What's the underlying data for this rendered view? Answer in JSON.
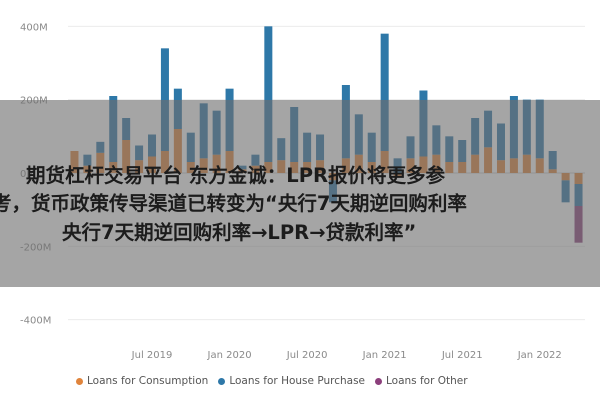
{
  "chart_data": {
    "type": "bar",
    "stacked": true,
    "title": "",
    "xlabel": "",
    "ylabel": "",
    "ylim": [
      -450,
      450
    ],
    "y_ticks": [
      {
        "value": 400,
        "label": "400M"
      },
      {
        "value": 200,
        "label": "200M"
      },
      {
        "value": 0,
        "label": "0M"
      },
      {
        "value": -200,
        "label": "-200M"
      },
      {
        "value": -400,
        "label": "-400M"
      }
    ],
    "x_ticks": [
      {
        "index": 6,
        "label": "Jul 2019"
      },
      {
        "index": 12,
        "label": "Jan 2020"
      },
      {
        "index": 18,
        "label": "Jul 2020"
      },
      {
        "index": 24,
        "label": "Jan 2021"
      },
      {
        "index": 30,
        "label": "Jul 2021"
      },
      {
        "index": 36,
        "label": "Jan 2022"
      }
    ],
    "categories": [
      "2019-01",
      "2019-02",
      "2019-03",
      "2019-04",
      "2019-05",
      "2019-06",
      "2019-07",
      "2019-08",
      "2019-09",
      "2019-10",
      "2019-11",
      "2019-12",
      "2020-01",
      "2020-02",
      "2020-03",
      "2020-04",
      "2020-05",
      "2020-06",
      "2020-07",
      "2020-08",
      "2020-09",
      "2020-10",
      "2020-11",
      "2020-12",
      "2021-01",
      "2021-02",
      "2021-03",
      "2021-04",
      "2021-05",
      "2021-06",
      "2021-07",
      "2021-08",
      "2021-09",
      "2021-10",
      "2021-11",
      "2021-12",
      "2022-01",
      "2022-02",
      "2022-03",
      "2022-04"
    ],
    "series": [
      {
        "name": "Loans for Consumption",
        "color": "#e0843c",
        "values": [
          60,
          20,
          55,
          30,
          90,
          35,
          45,
          60,
          120,
          30,
          40,
          50,
          60,
          10,
          20,
          30,
          35,
          30,
          30,
          35,
          -20,
          40,
          50,
          30,
          60,
          -10,
          40,
          45,
          50,
          30,
          30,
          50,
          70,
          35,
          40,
          50,
          40,
          10,
          -20,
          -30
        ]
      },
      {
        "name": "Loans for House Purchase",
        "color": "#2e78a8",
        "values": [
          0,
          30,
          30,
          180,
          60,
          40,
          60,
          280,
          110,
          80,
          150,
          120,
          170,
          10,
          30,
          370,
          60,
          150,
          80,
          70,
          -60,
          200,
          110,
          80,
          320,
          40,
          60,
          180,
          80,
          70,
          60,
          100,
          100,
          100,
          170,
          150,
          160,
          50,
          -60,
          -60
        ]
      },
      {
        "name": "Loans for Other",
        "color": "#8c3f7c",
        "values": [
          0,
          0,
          0,
          0,
          0,
          0,
          0,
          0,
          0,
          0,
          0,
          0,
          0,
          0,
          0,
          0,
          0,
          0,
          0,
          0,
          0,
          0,
          0,
          0,
          0,
          0,
          0,
          0,
          0,
          0,
          0,
          0,
          0,
          0,
          0,
          0,
          0,
          0,
          0,
          -100
        ]
      }
    ],
    "legend_position": "bottom-left",
    "grid": true
  },
  "overlay": {
    "lines": [
      "期货杠杆交易平台 东方金诚：LPR报价将更多参",
      "考，货币政策传导渠道已转变为“央行7天期逆回购利率",
      "央行7天期逆回购利率→LPR→贷款利率”"
    ]
  }
}
